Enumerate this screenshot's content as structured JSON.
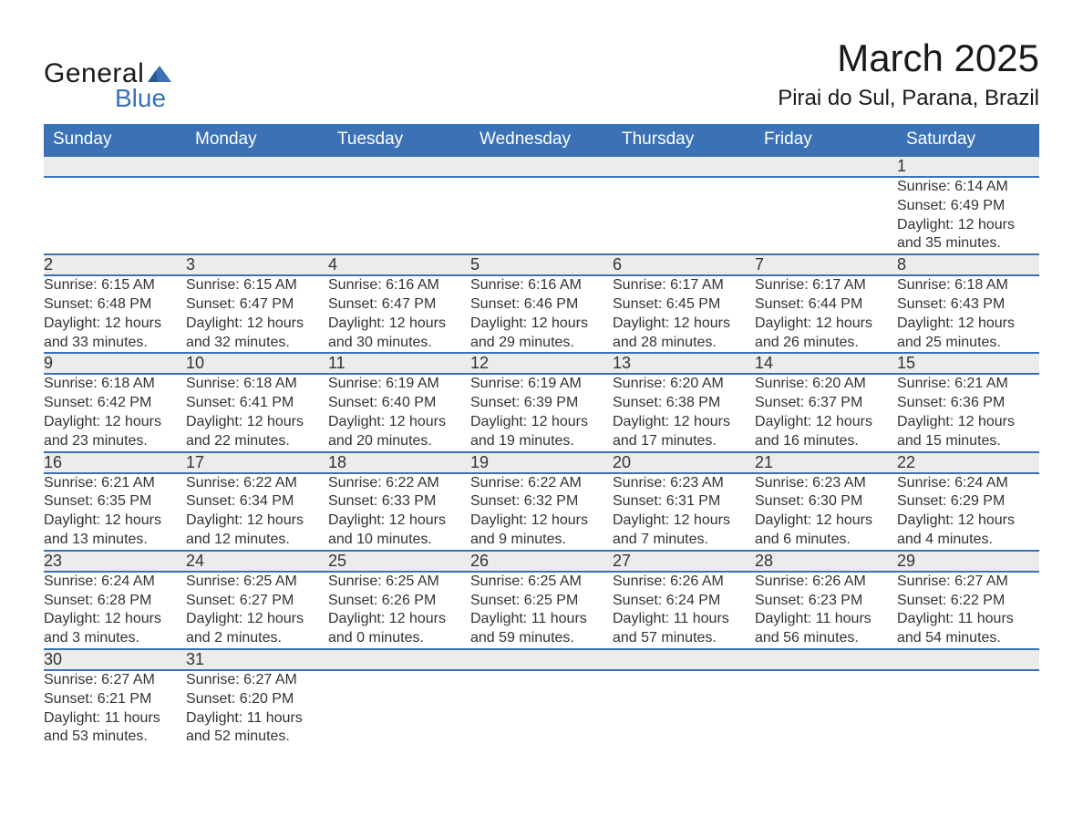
{
  "logo": {
    "text1": "General",
    "text2": "Blue",
    "accent_color": "#3b72b5"
  },
  "header": {
    "month_title": "March 2025",
    "location": "Pirai do Sul, Parana, Brazil"
  },
  "colors": {
    "header_bg": "#3b72b5",
    "header_text": "#ffffff",
    "daynum_bg": "#ececec",
    "body_text": "#333333",
    "row_divider": "#3b72b5"
  },
  "typography": {
    "month_title_pt": 42,
    "location_pt": 24,
    "weekday_pt": 19,
    "daynum_pt": 18,
    "detail_pt": 16,
    "font_family": "Arial"
  },
  "weekdays": [
    "Sunday",
    "Monday",
    "Tuesday",
    "Wednesday",
    "Thursday",
    "Friday",
    "Saturday"
  ],
  "weeks": [
    [
      null,
      null,
      null,
      null,
      null,
      null,
      {
        "day": "1",
        "sunrise": "Sunrise: 6:14 AM",
        "sunset": "Sunset: 6:49 PM",
        "daylight1": "Daylight: 12 hours",
        "daylight2": "and 35 minutes."
      }
    ],
    [
      {
        "day": "2",
        "sunrise": "Sunrise: 6:15 AM",
        "sunset": "Sunset: 6:48 PM",
        "daylight1": "Daylight: 12 hours",
        "daylight2": "and 33 minutes."
      },
      {
        "day": "3",
        "sunrise": "Sunrise: 6:15 AM",
        "sunset": "Sunset: 6:47 PM",
        "daylight1": "Daylight: 12 hours",
        "daylight2": "and 32 minutes."
      },
      {
        "day": "4",
        "sunrise": "Sunrise: 6:16 AM",
        "sunset": "Sunset: 6:47 PM",
        "daylight1": "Daylight: 12 hours",
        "daylight2": "and 30 minutes."
      },
      {
        "day": "5",
        "sunrise": "Sunrise: 6:16 AM",
        "sunset": "Sunset: 6:46 PM",
        "daylight1": "Daylight: 12 hours",
        "daylight2": "and 29 minutes."
      },
      {
        "day": "6",
        "sunrise": "Sunrise: 6:17 AM",
        "sunset": "Sunset: 6:45 PM",
        "daylight1": "Daylight: 12 hours",
        "daylight2": "and 28 minutes."
      },
      {
        "day": "7",
        "sunrise": "Sunrise: 6:17 AM",
        "sunset": "Sunset: 6:44 PM",
        "daylight1": "Daylight: 12 hours",
        "daylight2": "and 26 minutes."
      },
      {
        "day": "8",
        "sunrise": "Sunrise: 6:18 AM",
        "sunset": "Sunset: 6:43 PM",
        "daylight1": "Daylight: 12 hours",
        "daylight2": "and 25 minutes."
      }
    ],
    [
      {
        "day": "9",
        "sunrise": "Sunrise: 6:18 AM",
        "sunset": "Sunset: 6:42 PM",
        "daylight1": "Daylight: 12 hours",
        "daylight2": "and 23 minutes."
      },
      {
        "day": "10",
        "sunrise": "Sunrise: 6:18 AM",
        "sunset": "Sunset: 6:41 PM",
        "daylight1": "Daylight: 12 hours",
        "daylight2": "and 22 minutes."
      },
      {
        "day": "11",
        "sunrise": "Sunrise: 6:19 AM",
        "sunset": "Sunset: 6:40 PM",
        "daylight1": "Daylight: 12 hours",
        "daylight2": "and 20 minutes."
      },
      {
        "day": "12",
        "sunrise": "Sunrise: 6:19 AM",
        "sunset": "Sunset: 6:39 PM",
        "daylight1": "Daylight: 12 hours",
        "daylight2": "and 19 minutes."
      },
      {
        "day": "13",
        "sunrise": "Sunrise: 6:20 AM",
        "sunset": "Sunset: 6:38 PM",
        "daylight1": "Daylight: 12 hours",
        "daylight2": "and 17 minutes."
      },
      {
        "day": "14",
        "sunrise": "Sunrise: 6:20 AM",
        "sunset": "Sunset: 6:37 PM",
        "daylight1": "Daylight: 12 hours",
        "daylight2": "and 16 minutes."
      },
      {
        "day": "15",
        "sunrise": "Sunrise: 6:21 AM",
        "sunset": "Sunset: 6:36 PM",
        "daylight1": "Daylight: 12 hours",
        "daylight2": "and 15 minutes."
      }
    ],
    [
      {
        "day": "16",
        "sunrise": "Sunrise: 6:21 AM",
        "sunset": "Sunset: 6:35 PM",
        "daylight1": "Daylight: 12 hours",
        "daylight2": "and 13 minutes."
      },
      {
        "day": "17",
        "sunrise": "Sunrise: 6:22 AM",
        "sunset": "Sunset: 6:34 PM",
        "daylight1": "Daylight: 12 hours",
        "daylight2": "and 12 minutes."
      },
      {
        "day": "18",
        "sunrise": "Sunrise: 6:22 AM",
        "sunset": "Sunset: 6:33 PM",
        "daylight1": "Daylight: 12 hours",
        "daylight2": "and 10 minutes."
      },
      {
        "day": "19",
        "sunrise": "Sunrise: 6:22 AM",
        "sunset": "Sunset: 6:32 PM",
        "daylight1": "Daylight: 12 hours",
        "daylight2": "and 9 minutes."
      },
      {
        "day": "20",
        "sunrise": "Sunrise: 6:23 AM",
        "sunset": "Sunset: 6:31 PM",
        "daylight1": "Daylight: 12 hours",
        "daylight2": "and 7 minutes."
      },
      {
        "day": "21",
        "sunrise": "Sunrise: 6:23 AM",
        "sunset": "Sunset: 6:30 PM",
        "daylight1": "Daylight: 12 hours",
        "daylight2": "and 6 minutes."
      },
      {
        "day": "22",
        "sunrise": "Sunrise: 6:24 AM",
        "sunset": "Sunset: 6:29 PM",
        "daylight1": "Daylight: 12 hours",
        "daylight2": "and 4 minutes."
      }
    ],
    [
      {
        "day": "23",
        "sunrise": "Sunrise: 6:24 AM",
        "sunset": "Sunset: 6:28 PM",
        "daylight1": "Daylight: 12 hours",
        "daylight2": "and 3 minutes."
      },
      {
        "day": "24",
        "sunrise": "Sunrise: 6:25 AM",
        "sunset": "Sunset: 6:27 PM",
        "daylight1": "Daylight: 12 hours",
        "daylight2": "and 2 minutes."
      },
      {
        "day": "25",
        "sunrise": "Sunrise: 6:25 AM",
        "sunset": "Sunset: 6:26 PM",
        "daylight1": "Daylight: 12 hours",
        "daylight2": "and 0 minutes."
      },
      {
        "day": "26",
        "sunrise": "Sunrise: 6:25 AM",
        "sunset": "Sunset: 6:25 PM",
        "daylight1": "Daylight: 11 hours",
        "daylight2": "and 59 minutes."
      },
      {
        "day": "27",
        "sunrise": "Sunrise: 6:26 AM",
        "sunset": "Sunset: 6:24 PM",
        "daylight1": "Daylight: 11 hours",
        "daylight2": "and 57 minutes."
      },
      {
        "day": "28",
        "sunrise": "Sunrise: 6:26 AM",
        "sunset": "Sunset: 6:23 PM",
        "daylight1": "Daylight: 11 hours",
        "daylight2": "and 56 minutes."
      },
      {
        "day": "29",
        "sunrise": "Sunrise: 6:27 AM",
        "sunset": "Sunset: 6:22 PM",
        "daylight1": "Daylight: 11 hours",
        "daylight2": "and 54 minutes."
      }
    ],
    [
      {
        "day": "30",
        "sunrise": "Sunrise: 6:27 AM",
        "sunset": "Sunset: 6:21 PM",
        "daylight1": "Daylight: 11 hours",
        "daylight2": "and 53 minutes."
      },
      {
        "day": "31",
        "sunrise": "Sunrise: 6:27 AM",
        "sunset": "Sunset: 6:20 PM",
        "daylight1": "Daylight: 11 hours",
        "daylight2": "and 52 minutes."
      },
      null,
      null,
      null,
      null,
      null
    ]
  ]
}
